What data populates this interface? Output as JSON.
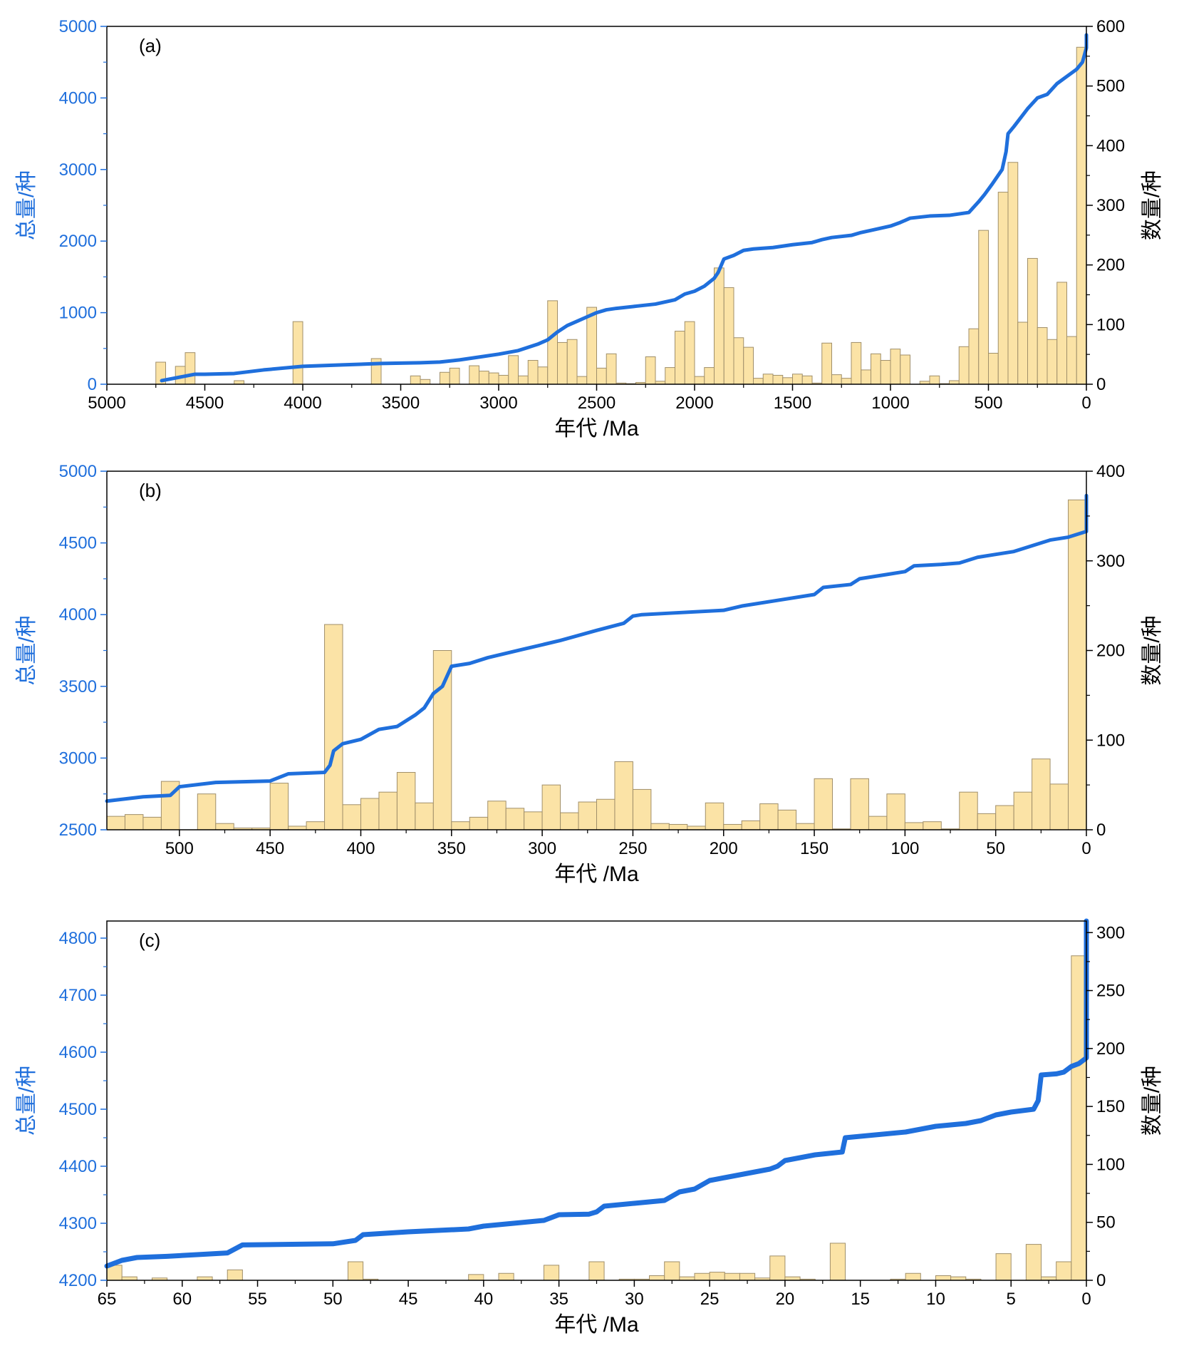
{
  "colors": {
    "line": "#1f6fdc",
    "bar_fill": "#fbe3a6",
    "bar_stroke": "#a08f6a",
    "axis": "#000000",
    "left_axis_text": "#1f6fdc"
  },
  "chart_data": [
    {
      "type": "bar",
      "panel_label": "(a)",
      "xlabel": "年代 /Ma",
      "ylabel_left": "总量/种",
      "ylabel_right": "数量/种",
      "xlim": [
        5000,
        0
      ],
      "ylim_left": [
        0,
        5000
      ],
      "ylim_right": [
        0,
        600
      ],
      "x_ticks": [
        5000,
        4500,
        4000,
        3500,
        3000,
        2500,
        2000,
        1500,
        1000,
        500,
        0
      ],
      "y_left_ticks": [
        0,
        1000,
        2000,
        3000,
        4000,
        5000
      ],
      "y_right_ticks": [
        0,
        100,
        200,
        300,
        400,
        500,
        600
      ],
      "bar_width": 50,
      "bars": {
        "x": [
          4725,
          4625,
          4575,
          4325,
          4025,
          3625,
          3425,
          3375,
          3275,
          3225,
          3125,
          3075,
          3025,
          2975,
          2925,
          2875,
          2825,
          2775,
          2725,
          2675,
          2625,
          2575,
          2525,
          2475,
          2425,
          2375,
          2325,
          2275,
          2225,
          2175,
          2125,
          2075,
          2025,
          1975,
          1925,
          1875,
          1825,
          1775,
          1725,
          1675,
          1625,
          1575,
          1525,
          1475,
          1425,
          1375,
          1325,
          1275,
          1225,
          1175,
          1125,
          1075,
          1025,
          975,
          925,
          825,
          775,
          725,
          675,
          625,
          575,
          525,
          475,
          425,
          375,
          325,
          275,
          225,
          175,
          125,
          75,
          25
        ],
        "values": [
          37,
          30,
          53,
          6,
          105,
          43,
          14,
          8,
          20,
          27,
          31,
          22,
          19,
          15,
          48,
          14,
          40,
          29,
          140,
          70,
          75,
          13,
          129,
          27,
          51,
          2,
          1,
          3,
          46,
          5,
          28,
          89,
          105,
          13,
          28,
          195,
          162,
          78,
          62,
          10,
          17,
          15,
          11,
          17,
          14,
          2,
          69,
          16,
          10,
          70,
          24,
          51,
          40,
          59,
          49,
          5,
          14,
          1,
          6,
          63,
          93,
          258,
          52,
          322,
          372,
          104,
          211,
          95,
          75,
          171,
          80,
          565
        ]
      },
      "series": [
        {
          "kind": "cumulative_line",
          "x": [
            4720,
            4550,
            4500,
            4350,
            4200,
            4000,
            3800,
            3600,
            3400,
            3300,
            3200,
            3100,
            3000,
            2900,
            2800,
            2750,
            2700,
            2650,
            2600,
            2550,
            2500,
            2450,
            2400,
            2300,
            2200,
            2150,
            2100,
            2050,
            2000,
            1950,
            1900,
            1880,
            1850,
            1800,
            1750,
            1700,
            1600,
            1500,
            1400,
            1350,
            1300,
            1200,
            1150,
            1100,
            1000,
            950,
            900,
            800,
            700,
            650,
            600,
            550,
            520,
            480,
            430,
            410,
            400,
            370,
            300,
            250,
            200,
            150,
            100,
            50,
            20,
            0,
            0
          ],
          "values": [
            50,
            140,
            140,
            150,
            200,
            250,
            270,
            290,
            300,
            310,
            340,
            380,
            420,
            470,
            560,
            620,
            730,
            820,
            880,
            940,
            1000,
            1040,
            1060,
            1090,
            1120,
            1150,
            1180,
            1260,
            1300,
            1370,
            1480,
            1560,
            1750,
            1800,
            1870,
            1890,
            1910,
            1950,
            1980,
            2020,
            2050,
            2080,
            2120,
            2150,
            2210,
            2260,
            2320,
            2350,
            2360,
            2380,
            2400,
            2550,
            2650,
            2800,
            3000,
            3250,
            3500,
            3600,
            3850,
            4000,
            4050,
            4200,
            4300,
            4400,
            4500,
            4700,
            4880
          ]
        }
      ]
    },
    {
      "type": "bar",
      "panel_label": "(b)",
      "xlabel": "年代 /Ma",
      "ylabel_left": "总量/种",
      "ylabel_right": "数量/种",
      "xlim": [
        540,
        0
      ],
      "ylim_left": [
        2500,
        5000
      ],
      "ylim_right": [
        0,
        400
      ],
      "x_ticks": [
        500,
        450,
        400,
        350,
        300,
        250,
        200,
        150,
        100,
        50,
        0
      ],
      "y_left_ticks": [
        2500,
        3000,
        3500,
        4000,
        4500,
        5000
      ],
      "y_right_ticks": [
        0,
        100,
        200,
        300,
        400
      ],
      "bar_width": 10,
      "bars": {
        "x": [
          535,
          525,
          515,
          505,
          495,
          485,
          475,
          465,
          455,
          445,
          435,
          425,
          415,
          405,
          395,
          385,
          375,
          365,
          355,
          345,
          335,
          325,
          315,
          305,
          295,
          285,
          275,
          265,
          255,
          245,
          235,
          225,
          215,
          205,
          195,
          185,
          175,
          165,
          155,
          145,
          135,
          125,
          115,
          105,
          95,
          85,
          75,
          65,
          55,
          45,
          35,
          25,
          15,
          5
        ],
        "values": [
          15,
          17,
          14,
          54,
          0,
          40,
          7,
          2,
          2,
          52,
          4,
          9,
          229,
          28,
          35,
          42,
          64,
          30,
          200,
          9,
          14,
          32,
          24,
          20,
          50,
          19,
          31,
          34,
          76,
          45,
          7,
          6,
          4,
          30,
          6,
          10,
          29,
          22,
          7,
          57,
          1,
          57,
          15,
          40,
          8,
          9,
          1,
          42,
          18,
          27,
          42,
          79,
          51,
          368
        ]
      },
      "series": [
        {
          "kind": "cumulative_line",
          "x": [
            540,
            520,
            505,
            500,
            480,
            450,
            440,
            420,
            417,
            415,
            410,
            400,
            390,
            380,
            370,
            365,
            360,
            355,
            350,
            340,
            330,
            310,
            290,
            270,
            255,
            250,
            245,
            230,
            200,
            190,
            170,
            150,
            145,
            130,
            125,
            110,
            100,
            95,
            80,
            70,
            60,
            50,
            40,
            30,
            20,
            10,
            5,
            0,
            0
          ],
          "values": [
            2700,
            2730,
            2740,
            2800,
            2830,
            2840,
            2890,
            2900,
            2950,
            3050,
            3100,
            3130,
            3200,
            3220,
            3300,
            3350,
            3450,
            3500,
            3640,
            3660,
            3700,
            3760,
            3820,
            3890,
            3940,
            3990,
            4000,
            4010,
            4030,
            4060,
            4100,
            4140,
            4190,
            4210,
            4250,
            4280,
            4300,
            4340,
            4350,
            4360,
            4400,
            4420,
            4440,
            4480,
            4520,
            4540,
            4560,
            4580,
            4830
          ]
        }
      ]
    },
    {
      "type": "bar",
      "panel_label": "(c)",
      "xlabel": "年代 /Ma",
      "ylabel_left": "总量/种",
      "ylabel_right": "数量/种",
      "xlim": [
        65,
        0
      ],
      "ylim_left": [
        4200,
        4830
      ],
      "ylim_right": [
        0,
        310
      ],
      "x_ticks": [
        65,
        60,
        55,
        50,
        45,
        40,
        35,
        30,
        25,
        20,
        15,
        10,
        5,
        0
      ],
      "y_left_ticks": [
        4200,
        4300,
        4400,
        4500,
        4600,
        4700,
        4800
      ],
      "y_right_ticks": [
        0,
        50,
        100,
        150,
        200,
        250,
        300
      ],
      "bar_width": 1,
      "bars": {
        "x": [
          64.5,
          63.5,
          61.5,
          58.5,
          56.5,
          48.5,
          47.5,
          40.5,
          38.5,
          35.5,
          32.5,
          30.5,
          29.5,
          28.5,
          27.5,
          26.5,
          25.5,
          24.5,
          23.5,
          22.5,
          21.5,
          20.5,
          19.5,
          18.5,
          16.5,
          12.5,
          11.5,
          9.5,
          8.5,
          7.5,
          5.5,
          3.5,
          2.5,
          1.5,
          0.5
        ],
        "values": [
          13,
          3,
          2,
          3,
          9,
          16,
          1,
          5,
          6,
          13,
          16,
          1,
          1,
          4,
          16,
          3,
          6,
          7,
          6,
          6,
          2,
          21,
          3,
          1,
          32,
          1,
          6,
          4,
          3,
          1,
          23,
          31,
          3,
          16,
          280
        ]
      },
      "series": [
        {
          "kind": "cumulative_line",
          "x": [
            65,
            64,
            63,
            61,
            59,
            57,
            56,
            50,
            48.5,
            48,
            45,
            41,
            40,
            38,
            36,
            35,
            33,
            32.5,
            32,
            30,
            28,
            27,
            26,
            25,
            24,
            23,
            22,
            21,
            20.5,
            20,
            19,
            18,
            16.2,
            16,
            12,
            11,
            10,
            8,
            7,
            6,
            5,
            3.5,
            3.2,
            3,
            2,
            1.5,
            1,
            0.5,
            0,
            0
          ],
          "values": [
            4225,
            4235,
            4240,
            4242,
            4245,
            4248,
            4262,
            4264,
            4270,
            4280,
            4285,
            4290,
            4295,
            4300,
            4305,
            4315,
            4316,
            4320,
            4330,
            4335,
            4340,
            4355,
            4360,
            4375,
            4380,
            4385,
            4390,
            4395,
            4400,
            4410,
            4415,
            4420,
            4425,
            4450,
            4460,
            4465,
            4470,
            4475,
            4480,
            4490,
            4495,
            4500,
            4515,
            4560,
            4562,
            4565,
            4575,
            4580,
            4590,
            4830
          ]
        }
      ]
    }
  ]
}
